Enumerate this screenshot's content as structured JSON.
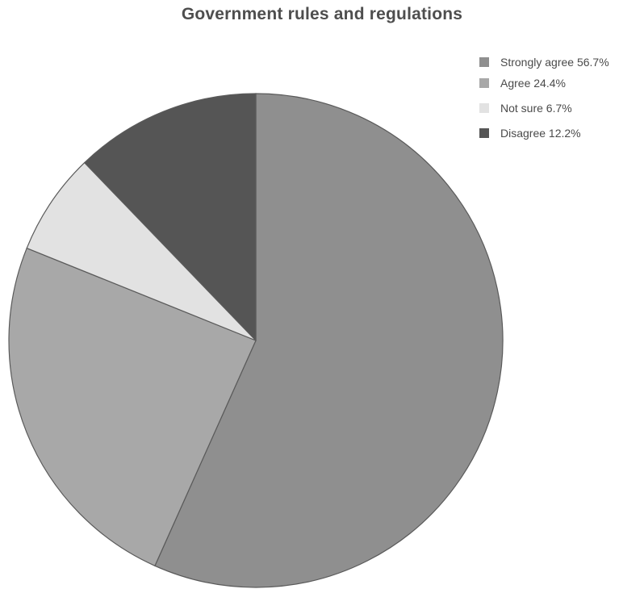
{
  "colors": {
    "background": "#ffffff",
    "title": "#4e4e4e",
    "outline": "#5a5a5a"
  },
  "chart_data": {
    "type": "pie",
    "title": "Government rules and regulations",
    "legend_position": "top-right",
    "slices": [
      {
        "label": "Strongly agree 56.7%",
        "value": 56.7,
        "color": "#8f8f8f"
      },
      {
        "label": "Agree 24.4%",
        "value": 24.4,
        "color": "#a8a8a8"
      },
      {
        "label": "Not sure 6.7%",
        "value": 6.7,
        "color": "#e2e2e2"
      },
      {
        "label": "Disagree 12.2%",
        "value": 12.2,
        "color": "#555555"
      }
    ]
  }
}
